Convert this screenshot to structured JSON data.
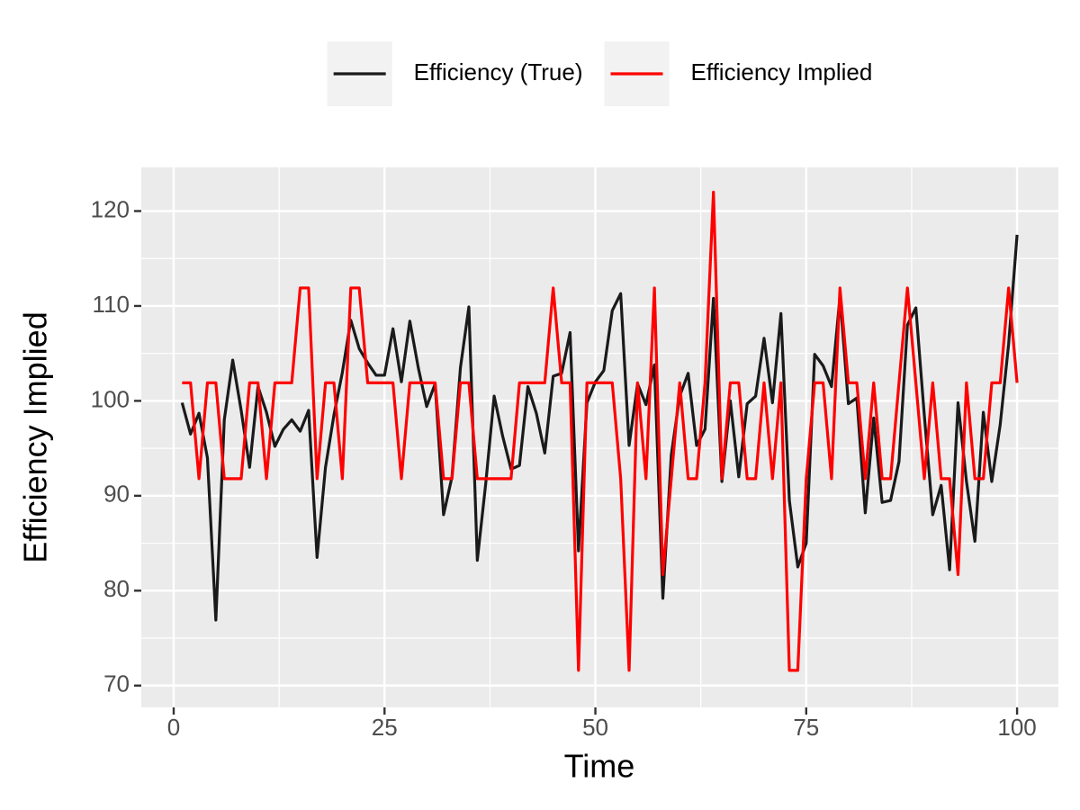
{
  "chart_data": {
    "type": "line",
    "x_label": "Time",
    "y_label": "Efficiency Implied",
    "x": [
      1,
      2,
      3,
      4,
      5,
      6,
      7,
      8,
      9,
      10,
      11,
      12,
      13,
      14,
      15,
      16,
      17,
      18,
      19,
      20,
      21,
      22,
      23,
      24,
      25,
      26,
      27,
      28,
      29,
      30,
      31,
      32,
      33,
      34,
      35,
      36,
      37,
      38,
      39,
      40,
      41,
      42,
      43,
      44,
      45,
      46,
      47,
      48,
      49,
      50,
      51,
      52,
      53,
      54,
      55,
      56,
      57,
      58,
      59,
      60,
      61,
      62,
      63,
      64,
      65,
      66,
      67,
      68,
      69,
      70,
      71,
      72,
      73,
      74,
      75,
      76,
      77,
      78,
      79,
      80,
      81,
      82,
      83,
      84,
      85,
      86,
      87,
      88,
      89,
      90,
      91,
      92,
      93,
      94,
      95,
      96,
      97,
      98,
      99,
      100
    ],
    "series": [
      {
        "name": "Efficiency (True)",
        "color": "#1a1a1a",
        "values": [
          99.8,
          96.5,
          98.7,
          94,
          76.9,
          98,
          104.3,
          99,
          93,
          101.5,
          98.8,
          95.2,
          97,
          98,
          96.8,
          99,
          83.5,
          93,
          98.5,
          103,
          108.5,
          105.5,
          104,
          102.7,
          102.7,
          107.6,
          102,
          108.4,
          103.5,
          99.4,
          101.8,
          88,
          92,
          103.5,
          109.9,
          83.2,
          91.3,
          100.5,
          96.3,
          92.8,
          93.2,
          101.5,
          98.7,
          94.5,
          102.6,
          102.9,
          107.2,
          84.2,
          99.8,
          102,
          103.2,
          109.5,
          111.3,
          95.3,
          101.8,
          99.6,
          103.8,
          79.2,
          94.3,
          100.5,
          102.9,
          95.3,
          97,
          110.8,
          91.5,
          100,
          92,
          99.7,
          100.5,
          106.6,
          99.8,
          109.2,
          89.5,
          82.5,
          85,
          104.9,
          103.7,
          101.5,
          111,
          99.7,
          100.3,
          88.2,
          98.2,
          89.3,
          89.5,
          93.6,
          108,
          109.8,
          98.5,
          88,
          91.1,
          82.2,
          99.8,
          91.5,
          85.2,
          98.8,
          91.5,
          97.5,
          106,
          117.5
        ]
      },
      {
        "name": "Efficiency Implied",
        "color": "#ff0000",
        "values": [
          101.9,
          101.9,
          91.8,
          101.9,
          101.9,
          91.8,
          91.8,
          91.8,
          101.9,
          101.9,
          91.8,
          101.9,
          101.9,
          101.9,
          111.9,
          111.9,
          91.8,
          101.9,
          101.9,
          91.8,
          111.9,
          111.9,
          101.9,
          101.9,
          101.9,
          101.9,
          91.8,
          101.9,
          101.9,
          101.9,
          101.9,
          91.8,
          91.8,
          101.9,
          101.9,
          91.8,
          91.8,
          91.8,
          91.8,
          91.8,
          101.9,
          101.9,
          101.9,
          101.9,
          111.9,
          101.9,
          101.9,
          71.6,
          101.9,
          101.9,
          101.9,
          101.9,
          91.8,
          71.6,
          101.9,
          91.8,
          111.9,
          81.7,
          91.8,
          101.9,
          91.8,
          91.8,
          101.9,
          122,
          91.8,
          101.9,
          101.9,
          91.8,
          91.8,
          101.9,
          91.8,
          101.9,
          71.6,
          71.6,
          91.8,
          101.9,
          101.9,
          91.8,
          111.9,
          101.9,
          101.9,
          91.8,
          101.9,
          91.8,
          91.8,
          101.9,
          111.9,
          101.9,
          91.8,
          101.9,
          91.8,
          91.8,
          81.7,
          101.9,
          91.8,
          91.8,
          101.9,
          101.9,
          111.9,
          101.9
        ]
      }
    ],
    "xlim": [
      -3.84,
      104.9
    ],
    "ylim": [
      67.7,
      124.6
    ],
    "xticks": [
      0,
      25,
      50,
      75,
      100
    ],
    "yticks": [
      70,
      80,
      90,
      100,
      110,
      120
    ],
    "grid": true,
    "legend_position": "top"
  }
}
